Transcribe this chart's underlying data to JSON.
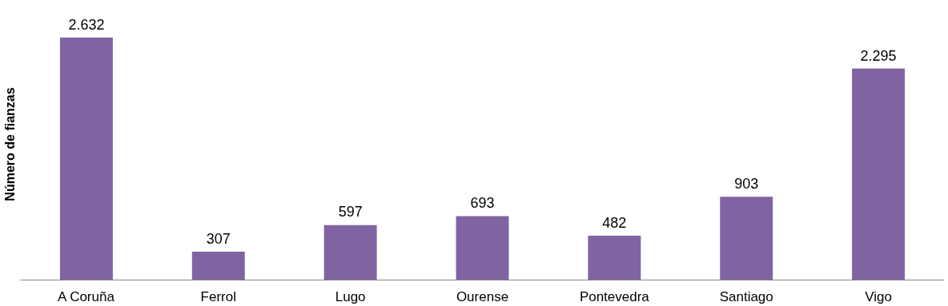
{
  "chart_data": {
    "type": "bar",
    "ylabel": "Número de fianzas",
    "categories": [
      "A Coruña",
      "Ferrol",
      "Lugo",
      "Ourense",
      "Pontevedra",
      "Santiago",
      "Vigo"
    ],
    "values": [
      2632,
      307,
      597,
      693,
      482,
      903,
      2295
    ],
    "value_labels": [
      "2.632",
      "307",
      "597",
      "693",
      "482",
      "903",
      "2.295"
    ],
    "color": "#8064a2",
    "grid": false
  }
}
